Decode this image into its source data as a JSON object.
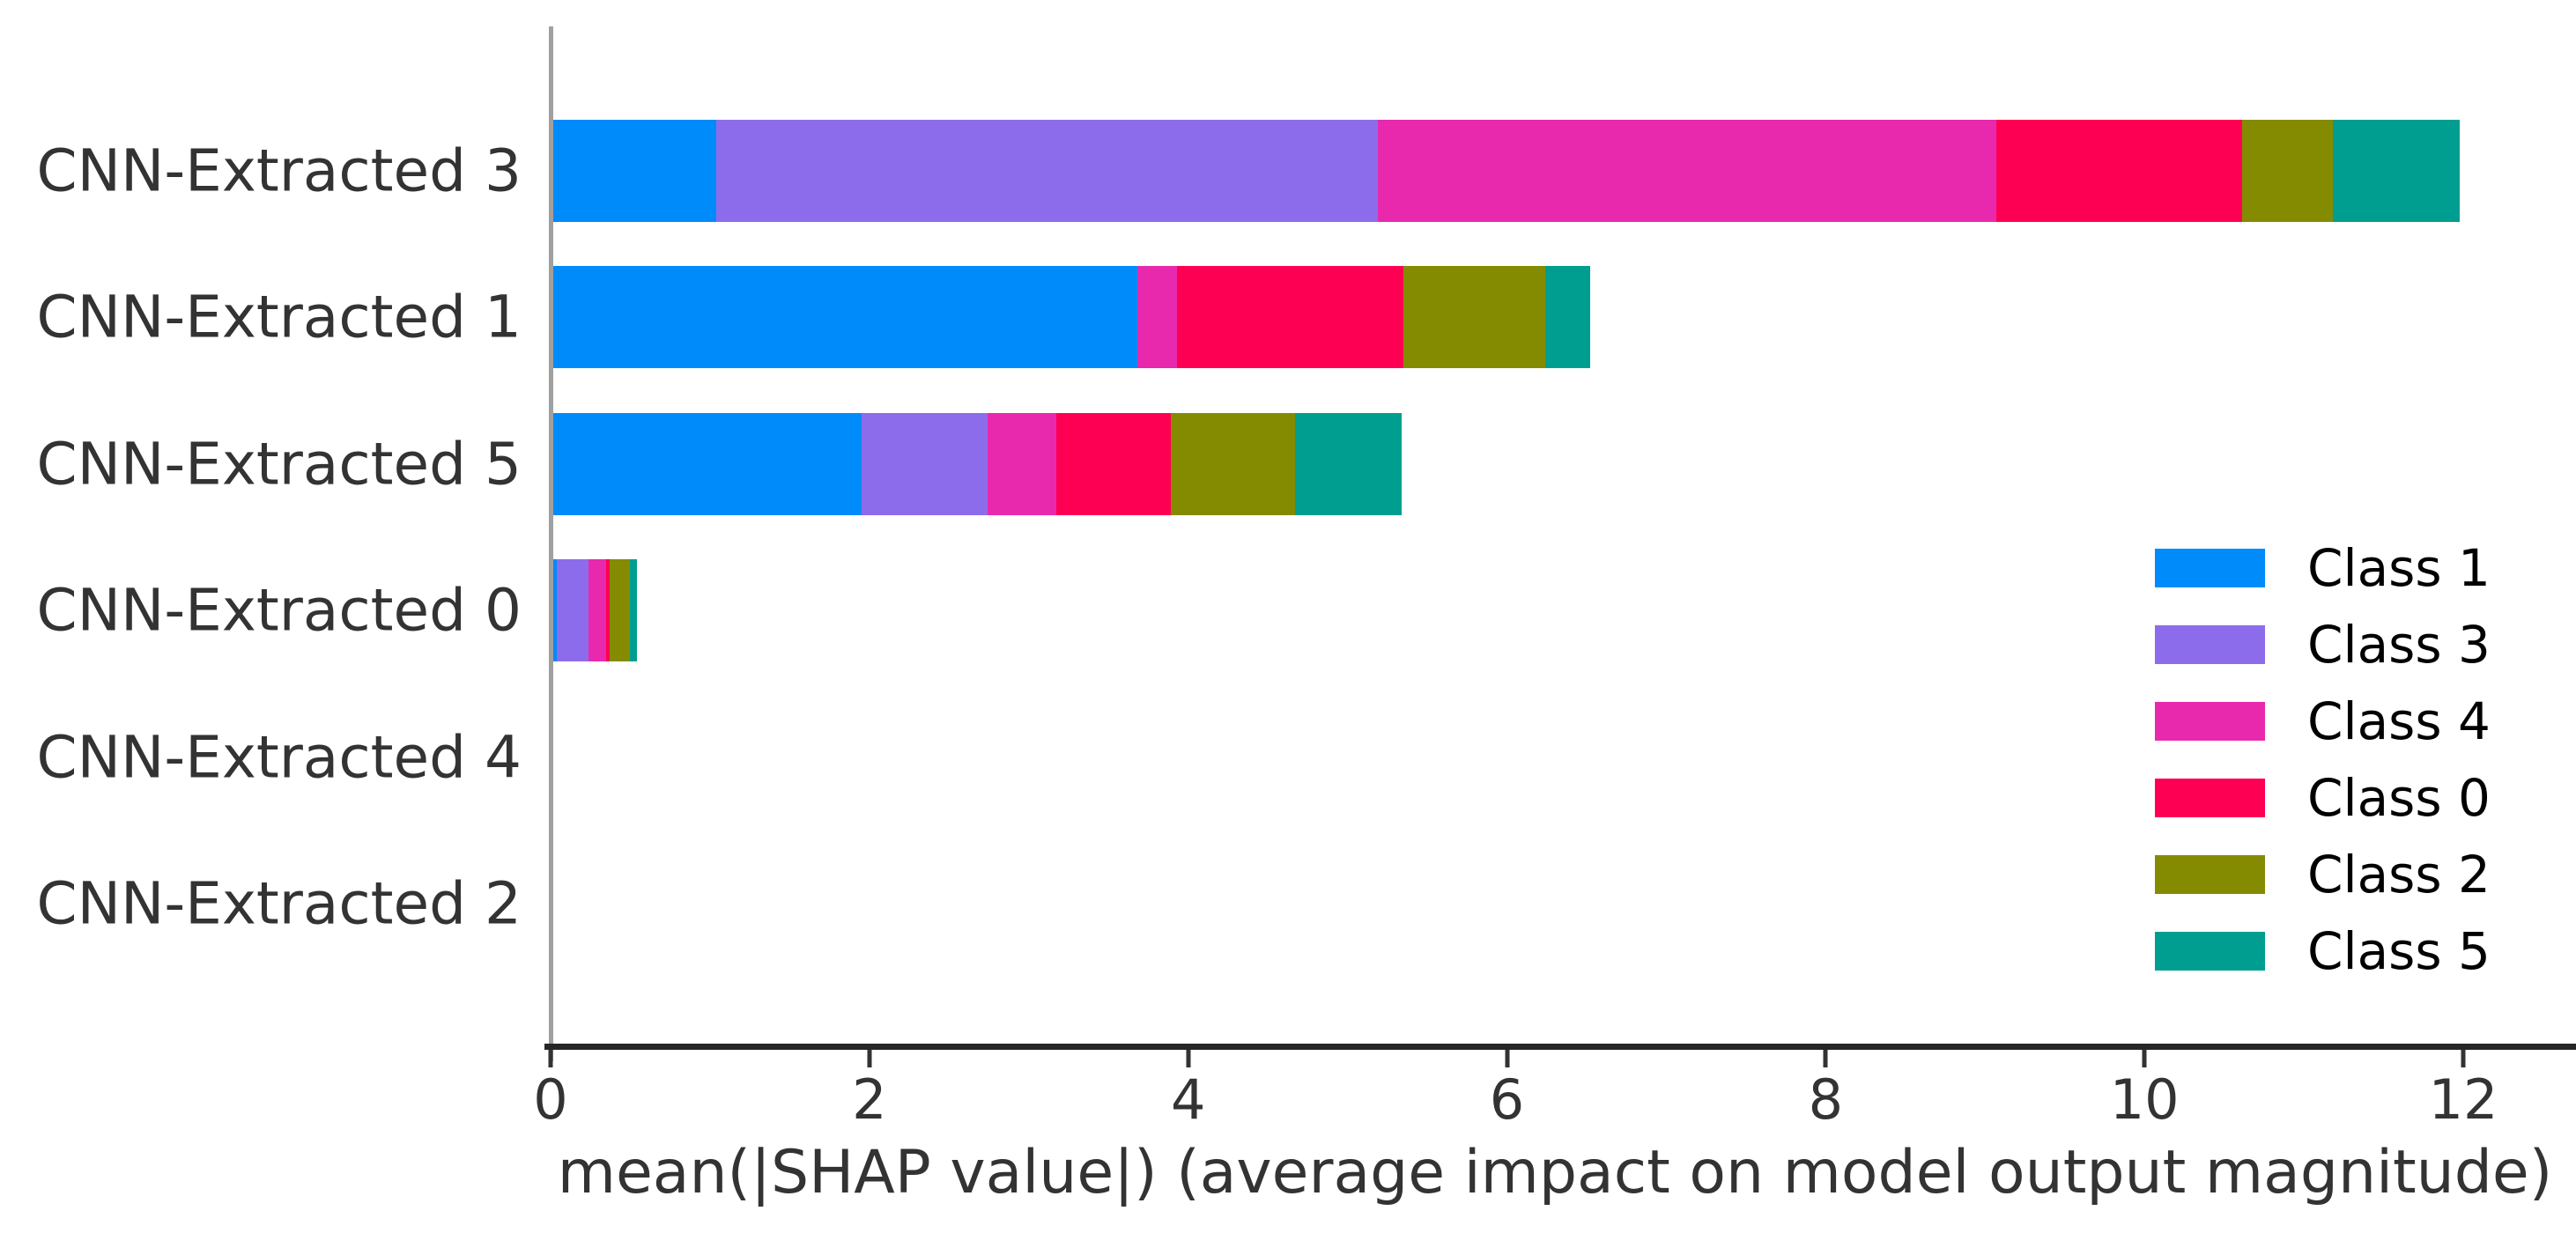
{
  "chart_data": {
    "type": "stacked_barh",
    "title": "",
    "xlabel": "mean(|SHAP value|) (average impact on model output magnitude)",
    "ylabel": "",
    "categories": [
      "CNN-Extracted 3",
      "CNN-Extracted 1",
      "CNN-Extracted 5",
      "CNN-Extracted 0",
      "CNN-Extracted 4",
      "CNN-Extracted 2"
    ],
    "series": [
      {
        "name": "Class 1",
        "color": "#008bfb",
        "values": [
          1.04,
          3.68,
          1.95,
          0.04,
          0,
          0
        ]
      },
      {
        "name": "Class 3",
        "color": "#8d6cec",
        "values": [
          4.15,
          0.0,
          0.79,
          0.2,
          0,
          0
        ]
      },
      {
        "name": "Class 4",
        "color": "#e829ad",
        "values": [
          3.88,
          0.25,
          0.43,
          0.11,
          0,
          0
        ]
      },
      {
        "name": "Class 0",
        "color": "#fe0053",
        "values": [
          1.54,
          1.42,
          0.72,
          0.02,
          0,
          0
        ]
      },
      {
        "name": "Class 2",
        "color": "#858b00",
        "values": [
          0.57,
          0.89,
          0.78,
          0.13,
          0,
          0
        ]
      },
      {
        "name": "Class 5",
        "color": "#009e90",
        "values": [
          0.8,
          0.28,
          0.67,
          0.04,
          0,
          0
        ]
      }
    ],
    "row_totals": [
      11.98,
      6.52,
      5.34,
      0.54,
      0,
      0
    ],
    "x_ticks": [
      0,
      2,
      4,
      6,
      8,
      10,
      12
    ],
    "xlim": [
      0,
      12.7
    ],
    "grid": false,
    "legend_position": "lower right",
    "colors": {
      "spine": "#a0a0a0",
      "axis_line": "#262626",
      "tick_text": "#333333",
      "legend_text": "#000000",
      "background": "#ffffff"
    }
  }
}
